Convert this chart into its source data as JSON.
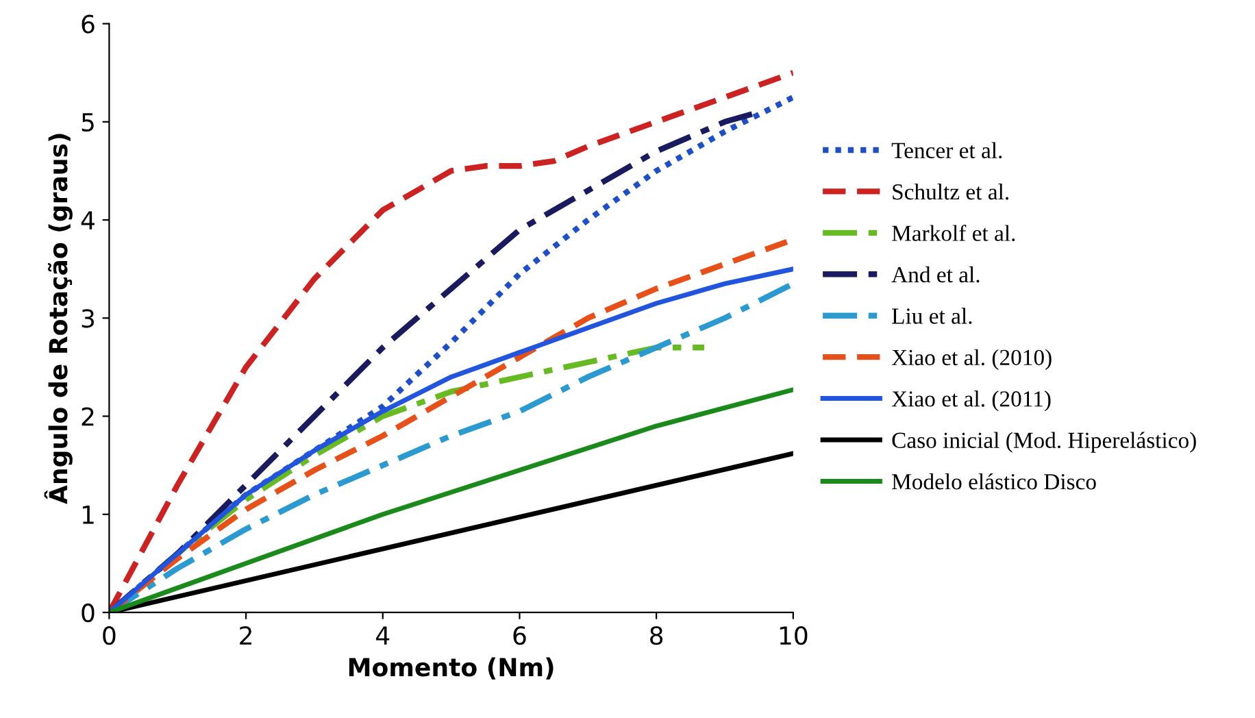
{
  "chart_data": {
    "type": "line",
    "xlabel": "Momento (Nm)",
    "ylabel": "Ângulo de Rotação (graus)",
    "xlim": [
      0,
      10
    ],
    "ylim": [
      0,
      6
    ],
    "xticks": [
      0,
      2,
      4,
      6,
      8,
      10
    ],
    "yticks": [
      0,
      1,
      2,
      3,
      4,
      5,
      6
    ],
    "grid": false,
    "legend": "right",
    "series": [
      {
        "name": "Tencer et al.",
        "color": "#1f4fc8",
        "line_style": "dotted",
        "x": [
          0,
          1,
          2,
          3,
          4,
          5,
          6,
          7,
          8,
          9,
          10
        ],
        "values": [
          0,
          0.6,
          1.2,
          1.65,
          2.1,
          2.75,
          3.45,
          4.0,
          4.5,
          4.9,
          5.25
        ]
      },
      {
        "name": "Schultz et al.",
        "color": "#cc2222",
        "line_style": "dashed",
        "x": [
          0,
          1,
          2,
          3,
          4,
          5,
          5.5,
          6,
          6.5,
          7,
          8,
          9,
          10
        ],
        "values": [
          0,
          1.3,
          2.5,
          3.4,
          4.1,
          4.5,
          4.55,
          4.55,
          4.6,
          4.75,
          5.0,
          5.25,
          5.5
        ]
      },
      {
        "name": "Markolf et al.",
        "color": "#66bb22",
        "line_style": "dashdot",
        "x": [
          0,
          1,
          2,
          3,
          4,
          5,
          6,
          7,
          8,
          8.7
        ],
        "values": [
          0,
          0.6,
          1.15,
          1.6,
          2.0,
          2.25,
          2.4,
          2.55,
          2.7,
          2.7
        ]
      },
      {
        "name": "And et al.",
        "color": "#1a1a5e",
        "line_style": "dashdot",
        "x": [
          0,
          1,
          2,
          3,
          4,
          5,
          6,
          7,
          8,
          9,
          9.5
        ],
        "values": [
          0,
          0.6,
          1.3,
          2.0,
          2.7,
          3.3,
          3.9,
          4.3,
          4.7,
          5.0,
          5.1
        ]
      },
      {
        "name": "Liu et al.",
        "color": "#2a9ad0",
        "line_style": "dashdot",
        "x": [
          0,
          1,
          2,
          3,
          4,
          5,
          6,
          7,
          8,
          9,
          10
        ],
        "values": [
          0,
          0.45,
          0.85,
          1.2,
          1.5,
          1.8,
          2.05,
          2.4,
          2.7,
          3.0,
          3.35
        ]
      },
      {
        "name": "Xiao et al. (2010)",
        "color": "#e8501a",
        "line_style": "dashed",
        "x": [
          0,
          1,
          2,
          3,
          4,
          5,
          6,
          7,
          8,
          9,
          10
        ],
        "values": [
          0,
          0.55,
          1.05,
          1.45,
          1.8,
          2.2,
          2.6,
          3.0,
          3.3,
          3.55,
          3.8
        ]
      },
      {
        "name": "Xiao et al. (2011)",
        "color": "#2255dd",
        "line_style": "solid",
        "x": [
          0,
          1,
          2,
          3,
          4,
          5,
          6,
          7,
          8,
          9,
          10
        ],
        "values": [
          0,
          0.6,
          1.2,
          1.65,
          2.05,
          2.4,
          2.65,
          2.9,
          3.15,
          3.35,
          3.5
        ]
      },
      {
        "name": "Caso inicial (Mod. Hiperelástico)",
        "color": "#000000",
        "line_style": "solid",
        "x": [
          0,
          10
        ],
        "values": [
          0,
          1.62
        ]
      },
      {
        "name": "Modelo elástico Disco",
        "color": "#1a8a1a",
        "line_style": "solid",
        "x": [
          0,
          2,
          4,
          6,
          8,
          10
        ],
        "values": [
          0,
          0.5,
          1.0,
          1.45,
          1.9,
          2.27
        ]
      }
    ]
  }
}
